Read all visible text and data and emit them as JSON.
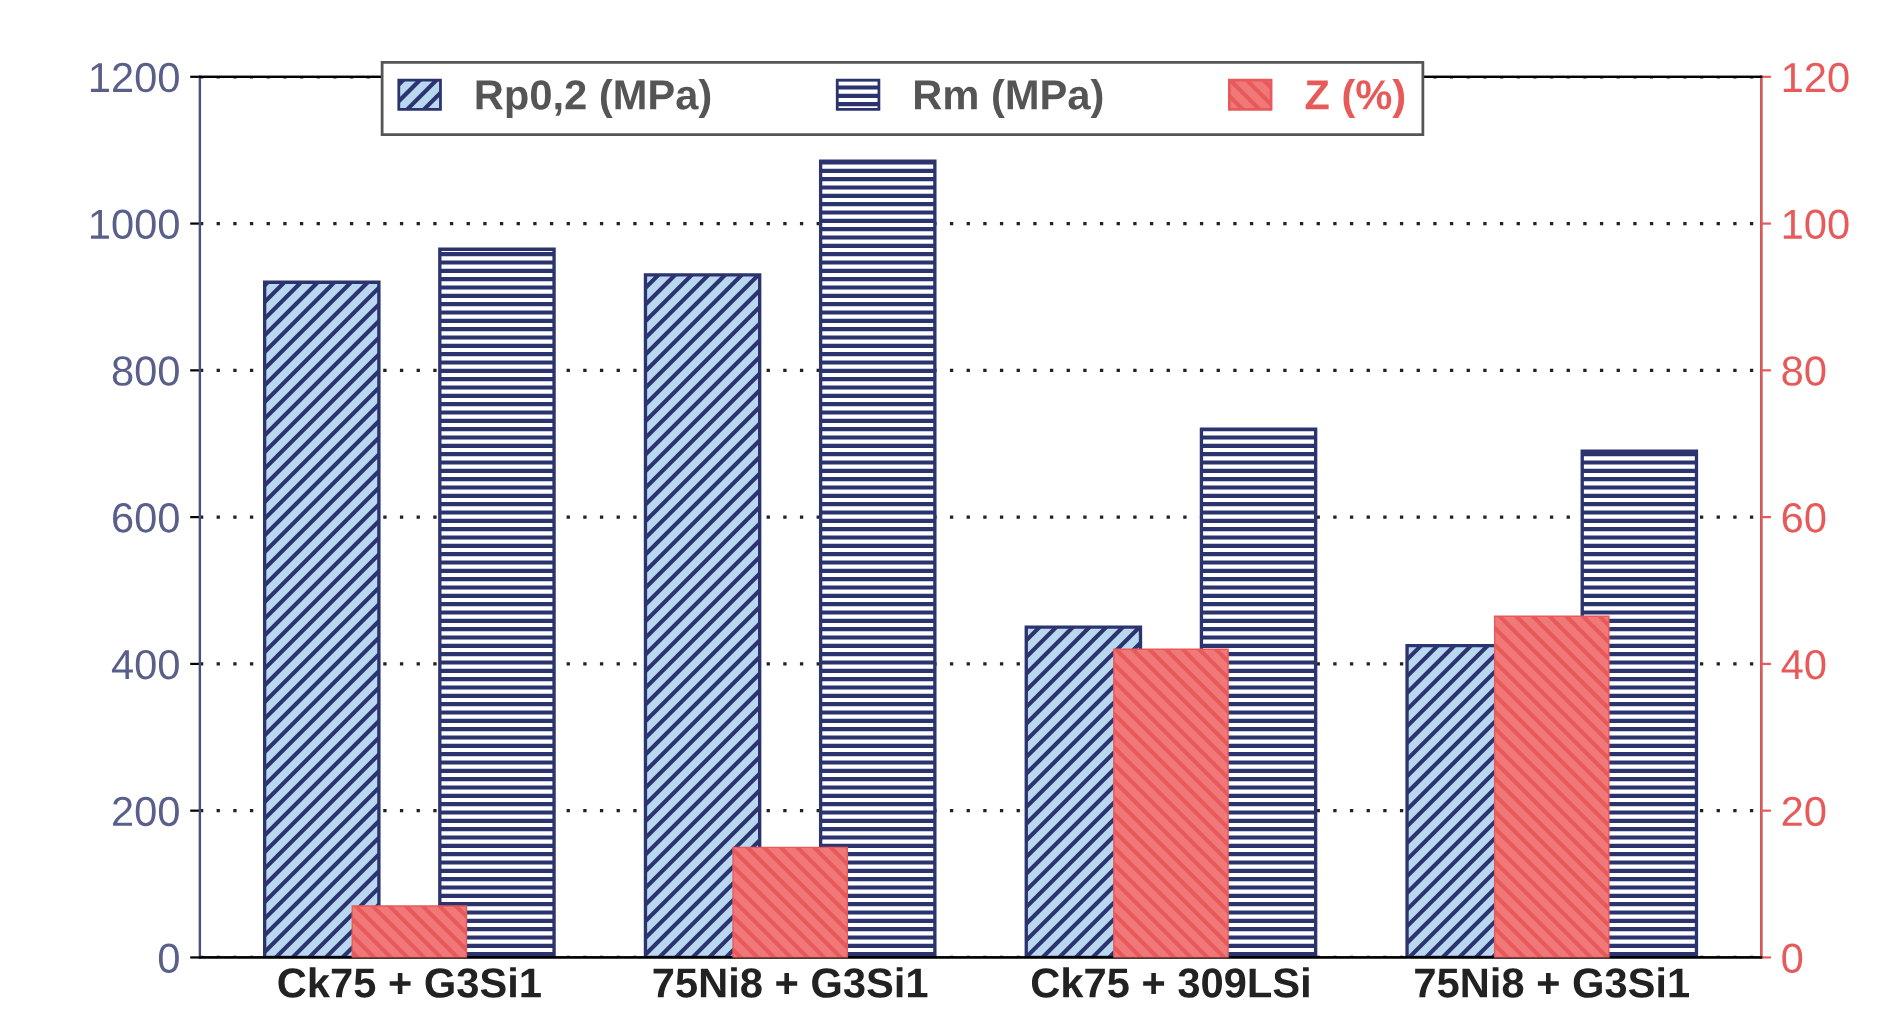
{
  "chart_data": {
    "type": "bar",
    "categories": [
      "Ck75 + G3Si1",
      "75Ni8 + G3Si1",
      "Ck75 + 309LSi",
      "75Ni8 + G3Si1"
    ],
    "series": [
      {
        "name": "Rp0,2 (MPa)",
        "color": "#2c3470",
        "values": [
          920,
          930,
          450,
          425
        ]
      },
      {
        "name": "Rm (MPa)",
        "color": "#2c3470",
        "values": [
          965,
          1085,
          720,
          690
        ]
      },
      {
        "name": "Z (%)",
        "color": "#e85a5a",
        "values": [
          7,
          15,
          42,
          46.5
        ],
        "axis": "y2"
      }
    ],
    "ylim": [
      0,
      1200
    ],
    "yticks": [
      0,
      200,
      400,
      600,
      800,
      1000,
      1200
    ],
    "y2lim": [
      0,
      120
    ],
    "y2ticks": [
      0,
      20,
      40,
      60,
      80,
      100,
      120
    ],
    "grid": "y",
    "legend": "top"
  }
}
